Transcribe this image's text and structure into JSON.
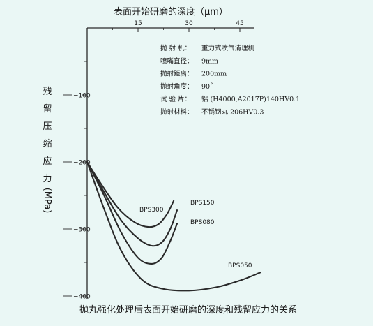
{
  "chart_data": {
    "type": "line",
    "title": "表面开始研磨的深度（μm）",
    "ylabel_chars": [
      "残",
      "留",
      "压",
      "缩",
      "应",
      "力"
    ],
    "ylabel_unit": "(MPa)",
    "caption": "抛丸强化处理后表面开始研磨的深度和残留应力的关系",
    "x_ticks": [
      15,
      30,
      45
    ],
    "xlim": [
      0,
      55
    ],
    "y_ticks": [
      -100,
      -200,
      -300,
      -400
    ],
    "y_tick_labels": [
      "−100",
      "−200",
      "−300",
      "−400"
    ],
    "ylim": [
      -410,
      10
    ],
    "info": [
      {
        "label": "抛 射 机：",
        "value": "重力式喷气清理机"
      },
      {
        "label": "喷嘴直径：",
        "value": "9mm"
      },
      {
        "label": "抛射距离：",
        "value": "200mm"
      },
      {
        "label": "抛射角度：",
        "value": "90˚"
      },
      {
        "label": "试 验 片：",
        "value": "铝 (H4000,A2017P)140HV0.1"
      },
      {
        "label": "抛射材料：",
        "value": "不锈钢丸 206HV0.3"
      }
    ],
    "series": [
      {
        "name": "BPS300",
        "x": [
          0,
          4,
          9,
          14,
          18,
          21,
          23.5,
          25.5
        ],
        "y": [
          -200,
          -232,
          -268,
          -290,
          -297,
          -293,
          -278,
          -258
        ]
      },
      {
        "name": "BPS150",
        "x": [
          0,
          5,
          10,
          15,
          19,
          22,
          24.5,
          26.5
        ],
        "y": [
          -200,
          -245,
          -287,
          -314,
          -325,
          -320,
          -300,
          -272
        ]
      },
      {
        "name": "BPS080",
        "x": [
          0,
          5,
          10,
          15,
          19,
          22,
          24.5,
          26.5
        ],
        "y": [
          -200,
          -250,
          -305,
          -343,
          -352,
          -343,
          -318,
          -292
        ]
      },
      {
        "name": "BPS050",
        "x": [
          0,
          5,
          10,
          16,
          22,
          30,
          38,
          45,
          51
        ],
        "y": [
          -200,
          -270,
          -332,
          -375,
          -389,
          -392,
          -387,
          -377,
          -365
        ]
      }
    ]
  }
}
